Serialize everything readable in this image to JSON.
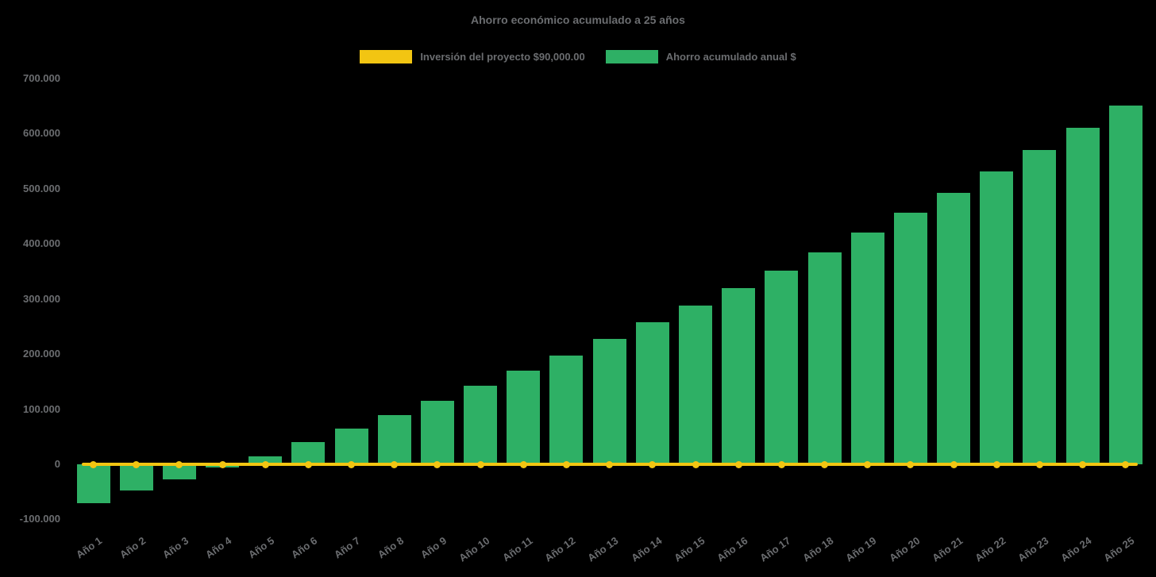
{
  "chart_data": {
    "type": "bar",
    "title": "Ahorro económico acumulado a 25 años",
    "legend_position": "top",
    "grid": false,
    "background": "#000000",
    "text_color": "#6b6d70",
    "categories": [
      "Año 1",
      "Año 2",
      "Año 3",
      "Año 4",
      "Año 5",
      "Año 6",
      "Año 7",
      "Año 8",
      "Año 9",
      "Año 10",
      "Año 11",
      "Año 12",
      "Año 13",
      "Año 14",
      "Año 15",
      "Año 16",
      "Año 17",
      "Año 18",
      "Año 19",
      "Año 20",
      "Año 21",
      "Año 22",
      "Año 23",
      "Año 24",
      "Año 25"
    ],
    "series": [
      {
        "name": "Inversión del proyecto $90,000.00",
        "type": "line",
        "color": "#F2C512",
        "constant_y": 0,
        "values": [
          0,
          0,
          0,
          0,
          0,
          0,
          0,
          0,
          0,
          0,
          0,
          0,
          0,
          0,
          0,
          0,
          0,
          0,
          0,
          0,
          0,
          0,
          0,
          0,
          0
        ]
      },
      {
        "name": "Ahorro acumulado anual $",
        "type": "bar",
        "color": "#2EB065",
        "values": [
          -70000,
          -48000,
          -28000,
          -6000,
          15000,
          40000,
          65000,
          90000,
          115000,
          143000,
          170000,
          198000,
          228000,
          258000,
          288000,
          320000,
          352000,
          385000,
          420000,
          456000,
          493000,
          531000,
          571000,
          611000,
          651000
        ]
      }
    ],
    "ylim": [
      -100000,
      700000
    ],
    "yticks": [
      {
        "v": -100000,
        "label": "-100.000"
      },
      {
        "v": 0,
        "label": "0"
      },
      {
        "v": 100000,
        "label": "100.000"
      },
      {
        "v": 200000,
        "label": "200.000"
      },
      {
        "v": 300000,
        "label": "300.000"
      },
      {
        "v": 400000,
        "label": "400.000"
      },
      {
        "v": 500000,
        "label": "500.000"
      },
      {
        "v": 600000,
        "label": "600.000"
      },
      {
        "v": 700000,
        "label": "700.000"
      }
    ]
  }
}
